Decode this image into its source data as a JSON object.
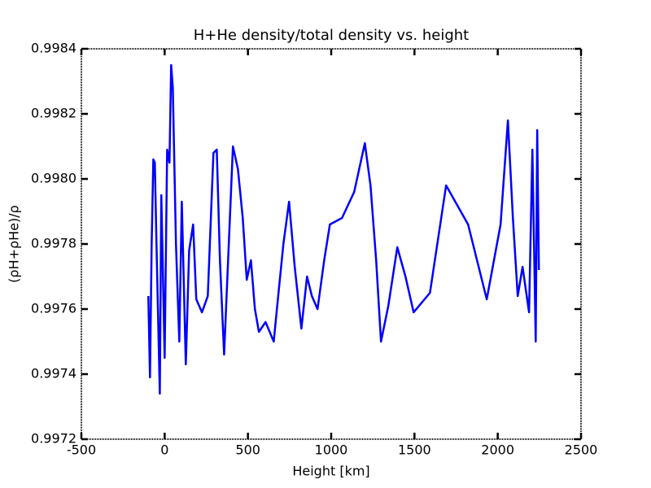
{
  "chart_data": {
    "type": "line",
    "title": "H+He density/total density vs. height",
    "x_label": "Height [km]",
    "y_label": "(ρH+ρHe)/ρ",
    "xlim": [
      -500,
      2500
    ],
    "xticks": [
      -500,
      0,
      500,
      1000,
      1500,
      2000,
      2500
    ],
    "ylim": [
      0.9972,
      0.9984
    ],
    "yticks": [
      {
        "value": 0.9972,
        "label": "0.9972"
      },
      {
        "value": 0.9974,
        "label": "0.9974"
      },
      {
        "value": 0.9976,
        "label": "0.9976"
      },
      {
        "value": 0.9978,
        "label": "0.9978"
      },
      {
        "value": 0.998,
        "label": "0.9980"
      },
      {
        "value": 0.9982,
        "label": "0.9982"
      },
      {
        "value": 0.9984,
        "label": "0.9984"
      }
    ],
    "grid": false,
    "series": [
      {
        "color": "#0000ff",
        "x": [
          -98,
          -88,
          -78,
          -68,
          -59,
          -49,
          -29,
          -20,
          0,
          15,
          29,
          39,
          49,
          68,
          88,
          103,
          127,
          147,
          171,
          190,
          224,
          259,
          293,
          313,
          332,
          357,
          381,
          410,
          440,
          469,
          493,
          518,
          542,
          566,
          606,
          655,
          674,
          713,
          747,
          781,
          821,
          855,
          884,
          918,
          958,
          992,
          1065,
          1138,
          1202,
          1236,
          1270,
          1299,
          1343,
          1397,
          1446,
          1495,
          1593,
          1690,
          1822,
          1934,
          2017,
          2061,
          2091,
          2120,
          2149,
          2188,
          2208,
          2228,
          2237,
          2247
        ],
        "values": [
          0.99764,
          0.99739,
          0.9978,
          0.99806,
          0.99805,
          0.9978,
          0.99734,
          0.99795,
          0.99745,
          0.99809,
          0.99805,
          0.99835,
          0.99828,
          0.9978,
          0.9975,
          0.99793,
          0.99743,
          0.99778,
          0.99786,
          0.99763,
          0.99759,
          0.99764,
          0.99808,
          0.99809,
          0.99775,
          0.99746,
          0.99775,
          0.9981,
          0.99803,
          0.99788,
          0.99769,
          0.99775,
          0.9976,
          0.99753,
          0.99756,
          0.9975,
          0.9976,
          0.9978,
          0.99793,
          0.99773,
          0.99754,
          0.9977,
          0.99764,
          0.9976,
          0.99775,
          0.99786,
          0.99788,
          0.99796,
          0.99811,
          0.99798,
          0.99775,
          0.9975,
          0.99761,
          0.99779,
          0.9977,
          0.99759,
          0.99765,
          0.99798,
          0.99786,
          0.99763,
          0.99786,
          0.99818,
          0.99788,
          0.99764,
          0.99773,
          0.99759,
          0.99809,
          0.9975,
          0.99815,
          0.99772
        ]
      }
    ]
  }
}
